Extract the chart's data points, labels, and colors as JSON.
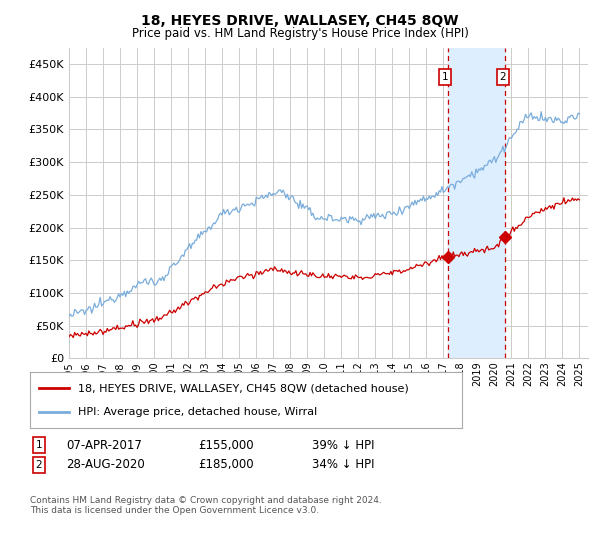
{
  "title": "18, HEYES DRIVE, WALLASEY, CH45 8QW",
  "subtitle": "Price paid vs. HM Land Registry's House Price Index (HPI)",
  "ylabel_ticks": [
    "£0",
    "£50K",
    "£100K",
    "£150K",
    "£200K",
    "£250K",
    "£300K",
    "£350K",
    "£400K",
    "£450K"
  ],
  "ytick_values": [
    0,
    50000,
    100000,
    150000,
    200000,
    250000,
    300000,
    350000,
    400000,
    450000
  ],
  "ylim": [
    0,
    475000
  ],
  "xlim_start": 1995.0,
  "xlim_end": 2025.5,
  "transaction1": {
    "date_num": 2017.27,
    "price": 155000,
    "label": "1",
    "date_str": "07-APR-2017",
    "below_pct": "39%"
  },
  "transaction2": {
    "date_num": 2020.65,
    "price": 185000,
    "label": "2",
    "date_str": "28-AUG-2020",
    "below_pct": "34%"
  },
  "legend_property": "18, HEYES DRIVE, WALLASEY, CH45 8QW (detached house)",
  "legend_hpi": "HPI: Average price, detached house, Wirral",
  "footer": "Contains HM Land Registry data © Crown copyright and database right 2024.\nThis data is licensed under the Open Government Licence v3.0.",
  "property_color": "#cc0000",
  "hpi_color": "#7aaddb",
  "vline_color": "#cc0000",
  "highlight_color": "#ddeeff",
  "grid_color": "#cccccc",
  "bg_color": "#ffffff",
  "xtick_years": [
    1995,
    1996,
    1997,
    1998,
    1999,
    2000,
    2001,
    2002,
    2003,
    2004,
    2005,
    2006,
    2007,
    2008,
    2009,
    2010,
    2011,
    2012,
    2013,
    2014,
    2015,
    2016,
    2017,
    2018,
    2019,
    2020,
    2021,
    2022,
    2023,
    2024,
    2025
  ]
}
